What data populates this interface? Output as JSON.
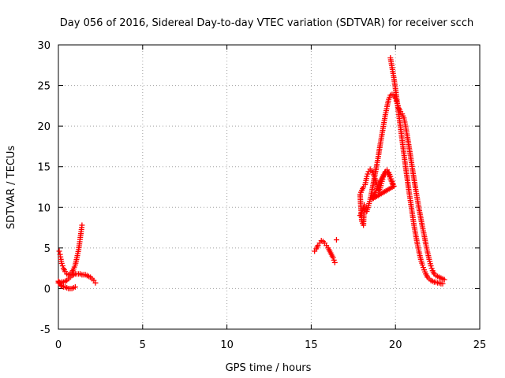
{
  "chart_data": {
    "type": "scatter",
    "title": "Day 056 of 2016, Sidereal Day-to-day VTEC variation (SDTVAR) for receiver scch",
    "xlabel": "GPS time / hours",
    "ylabel": "SDTVAR / TECUs",
    "xlim": [
      0,
      25
    ],
    "ylim": [
      -5,
      30
    ],
    "xticks": [
      0,
      5,
      10,
      15,
      20,
      25
    ],
    "yticks": [
      -5,
      0,
      5,
      10,
      15,
      20,
      25,
      30
    ],
    "xtick_labels": [
      "0",
      "5",
      "10",
      "15",
      "20",
      "25"
    ],
    "ytick_labels": [
      "-5",
      "0",
      "5",
      "10",
      "15",
      "20",
      "25",
      "30"
    ],
    "grid": true,
    "marker": "plus",
    "color": "#ff0000",
    "series": [
      {
        "name": "SDTVAR",
        "x": [
          0.0,
          0.05,
          0.1,
          0.15,
          0.2,
          0.3,
          0.4,
          0.5,
          0.6,
          0.7,
          0.8,
          0.9,
          1.0,
          0.05,
          0.1,
          0.15,
          0.2,
          0.3,
          0.4,
          0.5,
          0.6,
          0.7,
          0.8,
          0.9,
          1.0,
          1.1,
          1.2,
          1.25,
          1.3,
          1.35,
          1.4,
          0.0,
          0.1,
          0.2,
          0.3,
          0.4,
          0.5,
          0.6,
          0.7,
          0.8,
          0.9,
          1.0,
          1.1,
          1.2,
          1.3,
          1.4,
          1.5,
          1.6,
          1.7,
          1.8,
          1.9,
          2.0,
          2.1,
          2.2,
          15.2,
          15.3,
          15.4,
          15.5,
          15.6,
          15.7,
          15.8,
          15.9,
          16.0,
          16.1,
          16.2,
          16.3,
          16.35,
          16.4,
          17.9,
          18.0,
          18.1,
          18.15,
          18.1,
          18.0,
          17.9,
          18.0,
          18.1,
          18.2,
          18.3,
          18.4,
          18.5,
          18.6,
          18.7,
          18.8,
          18.9,
          19.0,
          19.1,
          19.2,
          19.3,
          19.4,
          19.5,
          19.6,
          19.7,
          19.8,
          19.9,
          18.6,
          18.7,
          18.8,
          18.9,
          19.0,
          19.1,
          19.2,
          19.3,
          19.4,
          19.5,
          19.6,
          19.7,
          19.8,
          19.9,
          18.3,
          18.4,
          18.5,
          18.6,
          18.7,
          18.8,
          18.9,
          19.0,
          19.1,
          19.2,
          19.3,
          19.4,
          19.5,
          19.6,
          19.7,
          19.8,
          19.9,
          20.0,
          20.1,
          20.2,
          20.3,
          20.4,
          20.5,
          20.6,
          20.7,
          20.8,
          20.9,
          21.0,
          21.1,
          21.2,
          21.3,
          21.4,
          21.5,
          21.6,
          21.7,
          21.8,
          21.9,
          22.0,
          22.1,
          22.2,
          22.3,
          22.4,
          22.5,
          22.6,
          22.7,
          22.8,
          22.9,
          19.7,
          19.8,
          19.9,
          20.0,
          20.1,
          20.2,
          20.3,
          20.4,
          20.5,
          20.6,
          20.7,
          20.8,
          20.9,
          21.0,
          21.1,
          21.2,
          21.3,
          21.4,
          21.5,
          21.6,
          21.7,
          21.8,
          21.9,
          22.0,
          22.1,
          22.2,
          22.3,
          22.4,
          22.5,
          22.6,
          22.7,
          22.8
        ],
        "y": [
          0.9,
          0.8,
          0.6,
          0.4,
          0.3,
          0.2,
          0.2,
          0.1,
          0.0,
          0.0,
          0.0,
          0.1,
          0.2,
          4.6,
          4.2,
          3.6,
          3.1,
          2.5,
          2.1,
          1.8,
          1.7,
          1.8,
          2.0,
          2.4,
          2.9,
          3.8,
          4.8,
          5.5,
          6.3,
          7.0,
          7.8,
          0.7,
          0.7,
          0.8,
          0.8,
          0.9,
          1.0,
          1.2,
          1.4,
          1.6,
          1.7,
          1.8,
          1.8,
          1.8,
          1.8,
          1.7,
          1.7,
          1.7,
          1.6,
          1.5,
          1.4,
          1.2,
          1.0,
          0.7,
          4.6,
          4.9,
          5.3,
          5.6,
          5.9,
          5.8,
          5.6,
          5.3,
          5.0,
          4.6,
          4.2,
          3.8,
          3.5,
          3.2,
          9.0,
          9.4,
          9.9,
          10.3,
          7.8,
          8.3,
          11.6,
          12.1,
          12.5,
          12.8,
          13.8,
          14.4,
          14.7,
          14.5,
          14.0,
          13.5,
          12.8,
          12.0,
          12.4,
          13.2,
          14.0,
          14.2,
          14.4,
          14.0,
          13.5,
          13.0,
          12.6,
          11.0,
          11.4,
          11.8,
          12.3,
          12.8,
          13.2,
          13.6,
          14.0,
          14.4,
          14.6,
          14.3,
          13.8,
          13.2,
          12.6,
          9.5,
          10.2,
          11.0,
          12.0,
          13.1,
          14.2,
          15.3,
          16.5,
          17.8,
          19.0,
          20.2,
          21.4,
          22.4,
          23.3,
          23.8,
          23.9,
          23.8,
          23.4,
          22.8,
          22.2,
          21.8,
          21.5,
          21.0,
          20.0,
          18.8,
          17.5,
          16.2,
          14.8,
          13.5,
          12.2,
          11.0,
          9.8,
          8.7,
          7.6,
          6.6,
          5.5,
          4.5,
          3.6,
          2.8,
          2.2,
          1.8,
          1.6,
          1.5,
          1.4,
          1.3,
          1.2,
          1.1,
          28.4,
          27.2,
          26.0,
          24.6,
          23.0,
          21.4,
          19.8,
          18.2,
          16.6,
          15.0,
          13.5,
          12.0,
          10.6,
          9.2,
          7.8,
          6.6,
          5.5,
          4.5,
          3.6,
          2.9,
          2.3,
          1.8,
          1.4,
          1.2,
          1.0,
          0.9,
          0.8,
          0.8,
          0.7,
          0.7,
          0.6,
          0.6
        ]
      }
    ],
    "isolated_points": {
      "x": [
        16.5
      ],
      "y": [
        6.0
      ]
    }
  }
}
